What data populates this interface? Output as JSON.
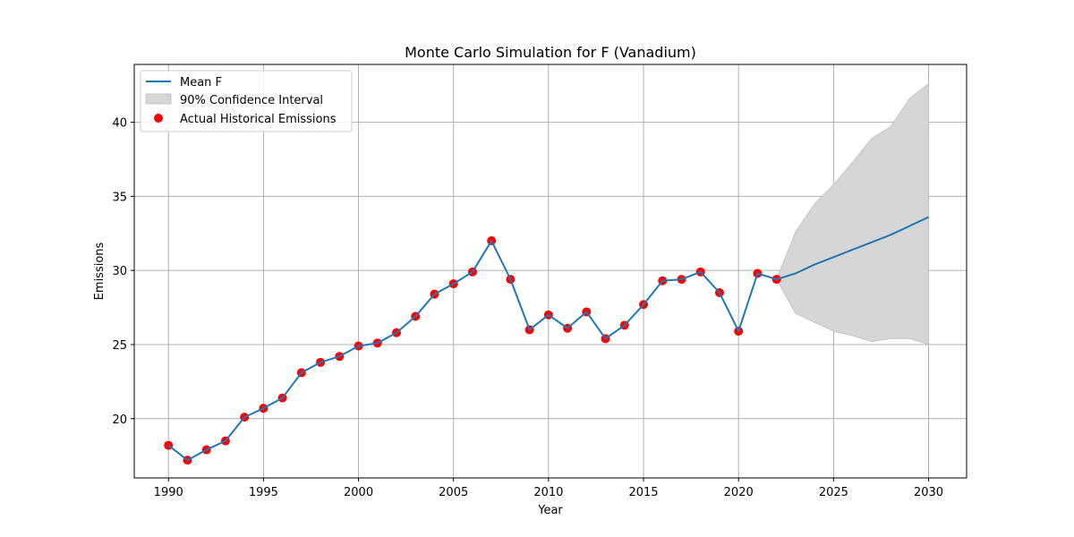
{
  "chart_data": {
    "type": "line",
    "title": "Monte Carlo Simulation for F (Vanadium)",
    "xlabel": "Year",
    "ylabel": "Emissions",
    "xlim": [
      1988.2,
      2032.0
    ],
    "ylim": [
      16.0,
      43.9
    ],
    "xticks": [
      1990,
      1995,
      2000,
      2005,
      2010,
      2015,
      2020,
      2025,
      2030
    ],
    "yticks": [
      20,
      25,
      30,
      35,
      40
    ],
    "grid": true,
    "legend_position": "top-left",
    "colors": {
      "mean": "#1f77b4",
      "band": "#d6d6d6",
      "band_edge": "#bdbdbd",
      "points": "#ff0000",
      "grid": "#b0b0b0",
      "axis": "#000000"
    },
    "series": [
      {
        "name": "Mean F",
        "kind": "line",
        "x": [
          1990,
          1991,
          1992,
          1993,
          1994,
          1995,
          1996,
          1997,
          1998,
          1999,
          2000,
          2001,
          2002,
          2003,
          2004,
          2005,
          2006,
          2007,
          2008,
          2009,
          2010,
          2011,
          2012,
          2013,
          2014,
          2015,
          2016,
          2017,
          2018,
          2019,
          2020,
          2021,
          2022,
          2023,
          2024,
          2025,
          2026,
          2027,
          2028,
          2029,
          2030
        ],
        "y": [
          18.2,
          17.2,
          17.9,
          18.5,
          20.1,
          20.7,
          21.4,
          23.1,
          23.8,
          24.2,
          24.9,
          25.1,
          25.8,
          26.9,
          28.4,
          29.1,
          29.9,
          32.0,
          29.4,
          26.0,
          27.0,
          26.1,
          27.2,
          25.4,
          26.3,
          27.7,
          29.3,
          29.4,
          29.9,
          28.5,
          25.9,
          29.8,
          29.4,
          29.8,
          30.4,
          30.9,
          31.4,
          31.9,
          32.4,
          33.0,
          33.6
        ]
      },
      {
        "name": "90% Confidence Interval",
        "kind": "band",
        "x": [
          2022,
          2023,
          2024,
          2025,
          2026,
          2027,
          2028,
          2029,
          2030
        ],
        "lower": [
          29.4,
          27.1,
          26.5,
          25.9,
          25.6,
          25.2,
          25.4,
          25.4,
          25.0
        ],
        "upper": [
          29.4,
          32.6,
          34.5,
          35.8,
          37.3,
          38.9,
          39.7,
          41.6,
          42.6
        ]
      },
      {
        "name": "Actual Historical Emissions",
        "kind": "scatter",
        "x": [
          1990,
          1991,
          1992,
          1993,
          1994,
          1995,
          1996,
          1997,
          1998,
          1999,
          2000,
          2001,
          2002,
          2003,
          2004,
          2005,
          2006,
          2007,
          2008,
          2009,
          2010,
          2011,
          2012,
          2013,
          2014,
          2015,
          2016,
          2017,
          2018,
          2019,
          2020,
          2021,
          2022
        ],
        "y": [
          18.2,
          17.2,
          17.9,
          18.5,
          20.1,
          20.7,
          21.4,
          23.1,
          23.8,
          24.2,
          24.9,
          25.1,
          25.8,
          26.9,
          28.4,
          29.1,
          29.9,
          32.0,
          29.4,
          26.0,
          27.0,
          26.1,
          27.2,
          25.4,
          26.3,
          27.7,
          29.3,
          29.4,
          29.9,
          28.5,
          25.9,
          29.8,
          29.4
        ]
      }
    ]
  }
}
